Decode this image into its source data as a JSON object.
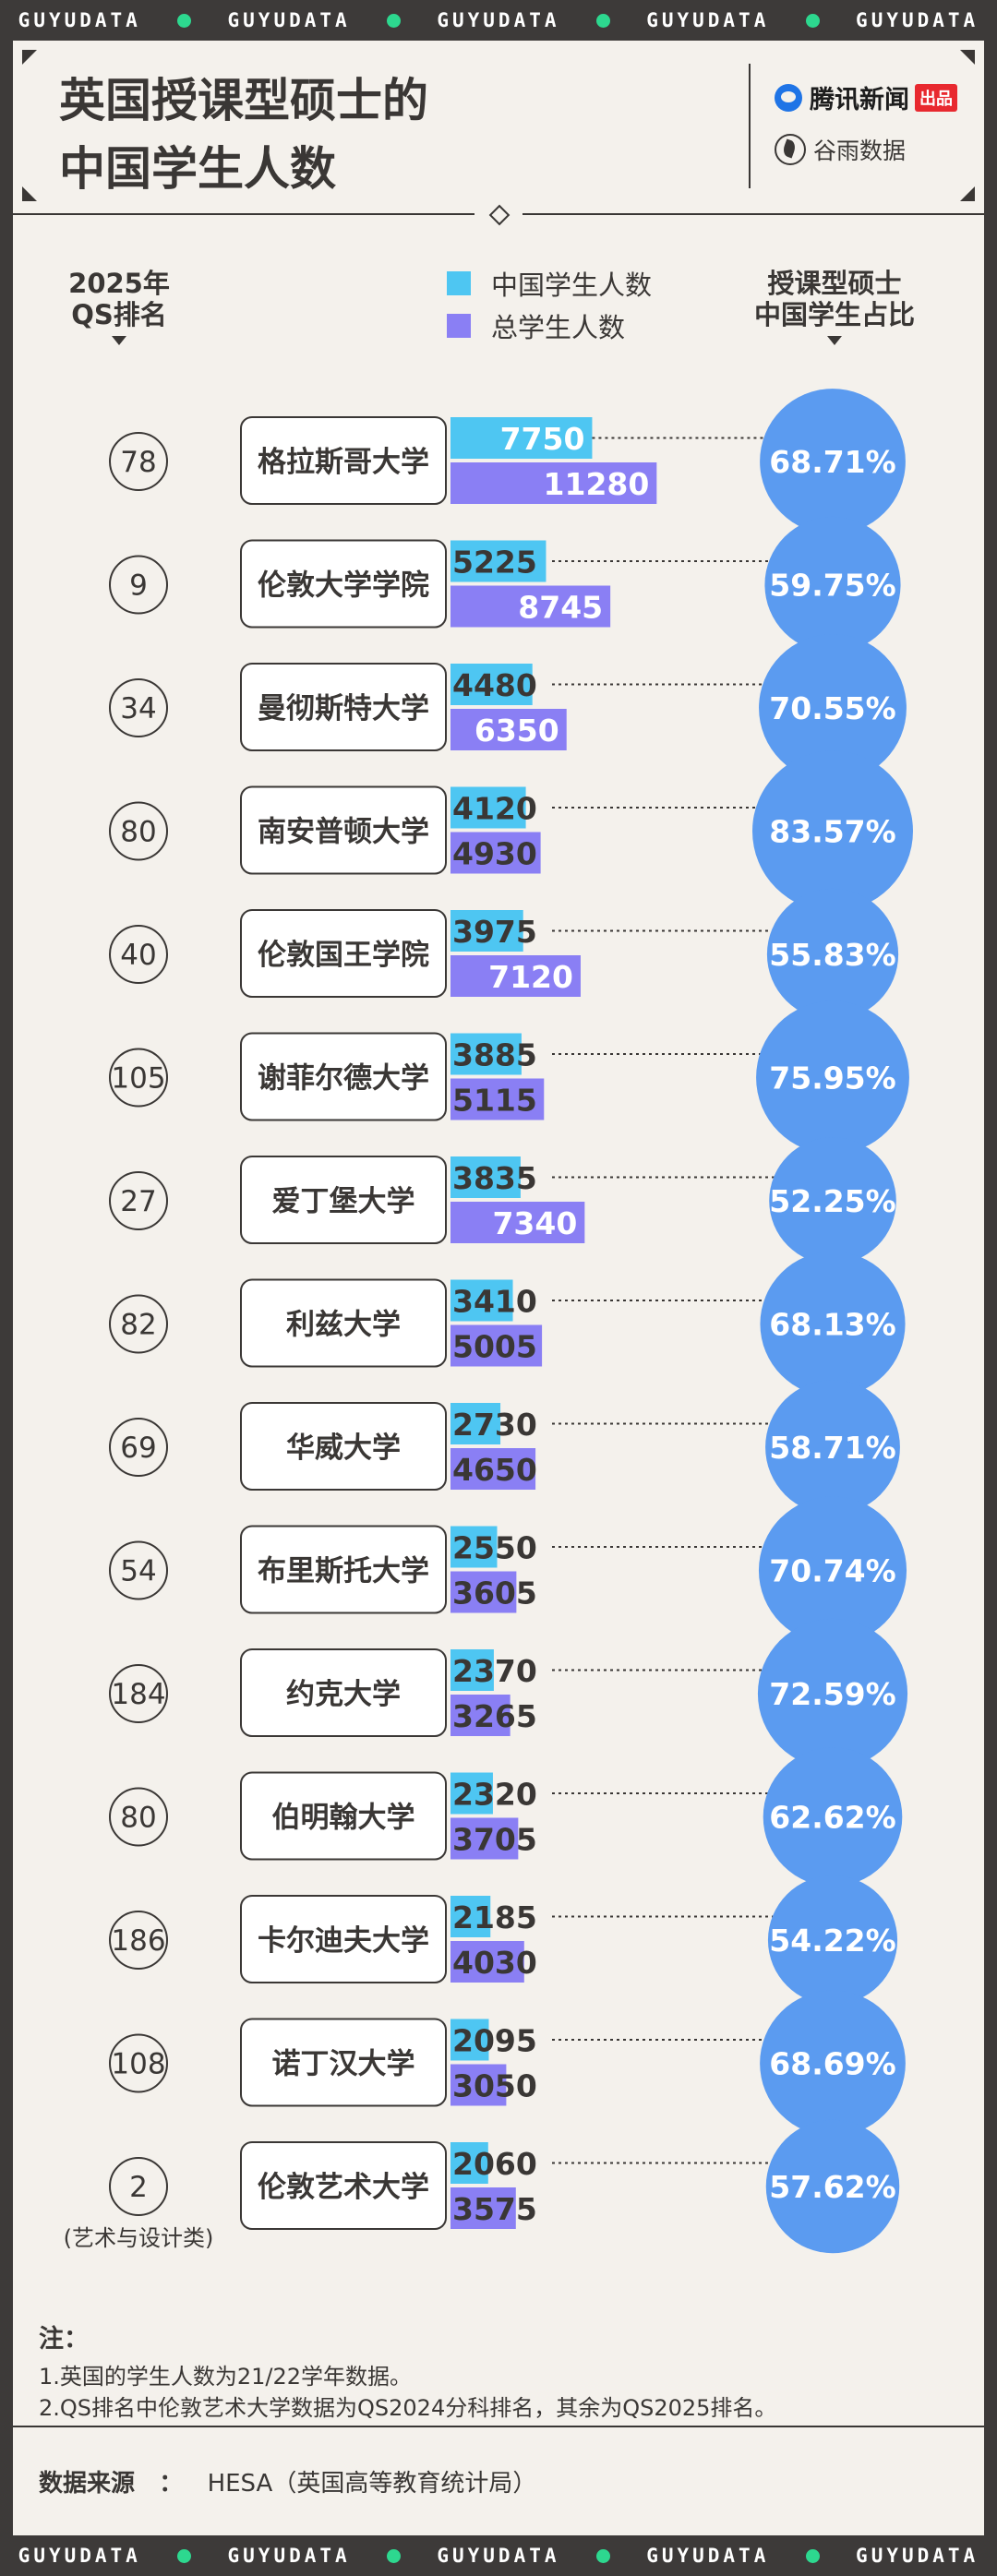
{
  "strip": [
    "GUYUDATA",
    "GUYUDATA",
    "GUYUDATA",
    "GUYUDATA",
    "GUYUDATA"
  ],
  "header": {
    "title_line1": "英国授课型硕士的",
    "title_line2": "中国学生人数",
    "brand1": "腾讯新闻",
    "brand1_tag": "出品",
    "brand2": "谷雨数据"
  },
  "columns": {
    "rank_line1": "2025年",
    "rank_line2": "QS排名",
    "share_line1": "授课型硕士",
    "share_line2": "中国学生占比"
  },
  "chart_data": {
    "type": "bar",
    "series": [
      {
        "name": "中国学生人数",
        "color": "#4ec6f2",
        "values": [
          7750,
          5225,
          4480,
          4120,
          3975,
          3885,
          3835,
          3410,
          2730,
          2550,
          2370,
          2320,
          2185,
          2095,
          2060
        ]
      },
      {
        "name": "总学生人数",
        "color": "#8a7ff4",
        "values": [
          11280,
          8745,
          6350,
          4930,
          7120,
          5115,
          7340,
          5005,
          4650,
          3605,
          3265,
          3705,
          4030,
          3050,
          3575
        ]
      }
    ],
    "categories": [
      "格拉斯哥大学",
      "伦敦大学学院",
      "曼彻斯特大学",
      "南安普顿大学",
      "伦敦国王学院",
      "谢菲尔德大学",
      "爱丁堡大学",
      "利兹大学",
      "华威大学",
      "布里斯托大学",
      "约克大学",
      "伯明翰大学",
      "卡尔迪夫大学",
      "诺丁汉大学",
      "伦敦艺术大学"
    ],
    "qs_rank": [
      "78",
      "9",
      "34",
      "80",
      "40",
      "105",
      "27",
      "82",
      "69",
      "54",
      "184",
      "80",
      "186",
      "108",
      "2"
    ],
    "rank_note": [
      "",
      "",
      "",
      "",
      "",
      "",
      "",
      "",
      "",
      "",
      "",
      "",
      "",
      "",
      "(艺术与设计类)"
    ],
    "share": [
      68.71,
      59.75,
      70.55,
      83.57,
      55.83,
      75.95,
      52.25,
      68.13,
      58.71,
      70.74,
      72.59,
      62.62,
      54.22,
      68.69,
      57.62
    ],
    "share_labels": [
      "68.71%",
      "59.75%",
      "70.55%",
      "83.57%",
      "55.83%",
      "75.95%",
      "52.25%",
      "68.13%",
      "58.71%",
      "70.74%",
      "72.59%",
      "62.62%",
      "54.22%",
      "68.69%",
      "57.62%"
    ],
    "bubble_color": "#5b9bf0"
  },
  "notes": {
    "title": "注：",
    "line1": "1.英国的学生人数为21/22学年数据。",
    "line2": "2.QS排名中伦敦艺术大学数据为QS2024分科排名，其余为QS2025排名。"
  },
  "source": {
    "label": "数据来源",
    "sep": "：",
    "value": "HESA（英国高等教育统计局）"
  }
}
